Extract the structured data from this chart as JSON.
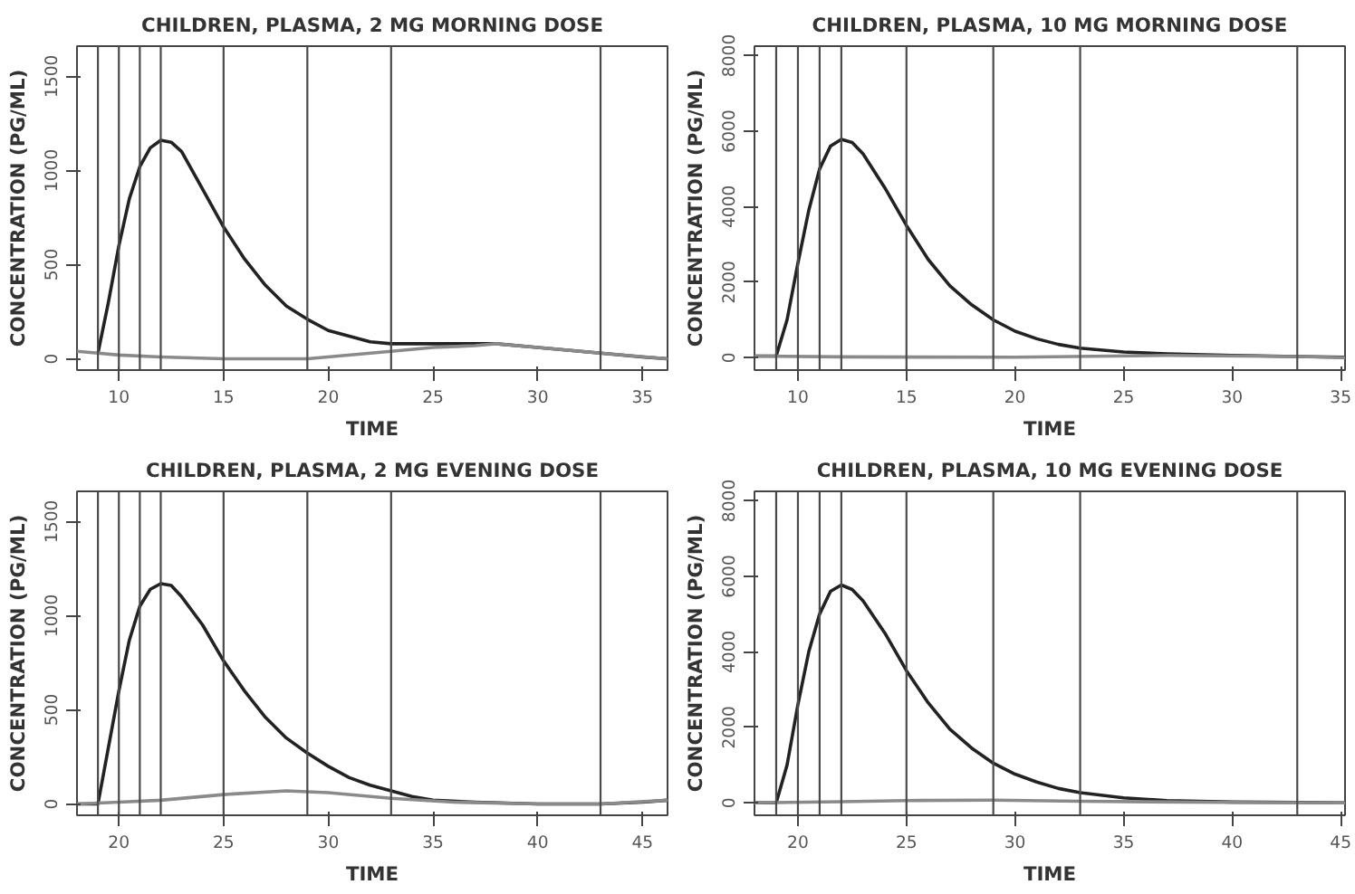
{
  "chart_data": [
    {
      "type": "line",
      "title": "CHILDREN, PLASMA, 2 MG MORNING DOSE",
      "xlabel": "TIME",
      "ylabel": "CONCENTRATION (PG/ML)",
      "xlim": [
        8,
        36.2
      ],
      "ylim": [
        -60,
        1660
      ],
      "xticks": [
        10,
        15,
        20,
        25,
        30,
        35
      ],
      "yticks": [
        0,
        500,
        1000,
        1500
      ],
      "grid": false,
      "marker": "none",
      "line_style": "solid",
      "series": [
        {
          "color": "#222222",
          "x": [
            9,
            9.5,
            10,
            10.5,
            11,
            11.5,
            12,
            12.5,
            13,
            14,
            15,
            16,
            17,
            18,
            19,
            20,
            21,
            22,
            23,
            25,
            27,
            28,
            30,
            33,
            35,
            36.2
          ],
          "values": [
            30,
            300,
            600,
            850,
            1020,
            1120,
            1160,
            1150,
            1100,
            900,
            700,
            530,
            390,
            280,
            210,
            150,
            120,
            90,
            80,
            80,
            80,
            80,
            60,
            30,
            10,
            0
          ]
        },
        {
          "color": "#8a8a8a",
          "x": [
            8,
            9,
            10,
            12,
            15,
            19,
            23,
            25,
            27,
            28,
            30,
            33,
            36.2
          ],
          "values": [
            40,
            30,
            20,
            10,
            0,
            0,
            40,
            60,
            70,
            80,
            60,
            30,
            0
          ]
        }
      ],
      "ref_lines": [
        {
          "axis": "x",
          "value": 9
        },
        {
          "axis": "x",
          "value": 10
        },
        {
          "axis": "x",
          "value": 11
        },
        {
          "axis": "x",
          "value": 12
        },
        {
          "axis": "x",
          "value": 15
        },
        {
          "axis": "x",
          "value": 19
        },
        {
          "axis": "x",
          "value": 23
        },
        {
          "axis": "x",
          "value": 33
        }
      ]
    },
    {
      "type": "line",
      "title": "CHILDREN, PLASMA, 10 MG MORNING DOSE",
      "xlabel": "TIME",
      "ylabel": "CONCENTRATION (PG/ML)",
      "xlim": [
        8,
        35.2
      ],
      "ylim": [
        -330,
        8250
      ],
      "xticks": [
        10,
        15,
        20,
        25,
        30,
        35
      ],
      "yticks": [
        0,
        2000,
        4000,
        6000,
        8000
      ],
      "grid": false,
      "marker": "none",
      "line_style": "solid",
      "series": [
        {
          "color": "#222222",
          "x": [
            8,
            9,
            9.5,
            10,
            10.5,
            11,
            11.5,
            12,
            12.5,
            13,
            14,
            15,
            16,
            17,
            18,
            19,
            20,
            21,
            22,
            23,
            25,
            27,
            30,
            33,
            35.2
          ],
          "values": [
            40,
            40,
            1000,
            2500,
            3900,
            5000,
            5600,
            5780,
            5700,
            5400,
            4500,
            3500,
            2600,
            1900,
            1400,
            1000,
            700,
            500,
            350,
            250,
            150,
            100,
            60,
            30,
            10
          ]
        },
        {
          "color": "#8a8a8a",
          "x": [
            8,
            12,
            20,
            27,
            33,
            35.2
          ],
          "values": [
            40,
            20,
            10,
            60,
            30,
            0
          ]
        }
      ],
      "ref_lines": [
        {
          "axis": "x",
          "value": 9
        },
        {
          "axis": "x",
          "value": 10
        },
        {
          "axis": "x",
          "value": 11
        },
        {
          "axis": "x",
          "value": 12
        },
        {
          "axis": "x",
          "value": 15
        },
        {
          "axis": "x",
          "value": 19
        },
        {
          "axis": "x",
          "value": 23
        },
        {
          "axis": "x",
          "value": 33
        }
      ]
    },
    {
      "type": "line",
      "title": "CHILDREN, PLASMA, 2 MG EVENING DOSE",
      "xlabel": "TIME",
      "ylabel": "CONCENTRATION (PG/ML)",
      "xlim": [
        18,
        46.2
      ],
      "ylim": [
        -60,
        1660
      ],
      "xticks": [
        20,
        25,
        30,
        35,
        40,
        45
      ],
      "yticks": [
        0,
        500,
        1000,
        1500
      ],
      "grid": false,
      "marker": "none",
      "line_style": "solid",
      "series": [
        {
          "color": "#222222",
          "x": [
            18,
            19,
            19.5,
            20,
            20.5,
            21,
            21.5,
            22,
            22.5,
            23,
            24,
            25,
            26,
            27,
            28,
            29,
            30,
            31,
            32,
            33,
            34,
            35,
            37,
            40,
            43,
            45,
            46.2
          ],
          "values": [
            0,
            0,
            300,
            600,
            870,
            1050,
            1140,
            1170,
            1160,
            1100,
            950,
            760,
            600,
            460,
            350,
            270,
            200,
            140,
            100,
            70,
            40,
            20,
            10,
            0,
            0,
            10,
            20
          ]
        },
        {
          "color": "#8a8a8a",
          "x": [
            18,
            20,
            22,
            25,
            28,
            30,
            33,
            36,
            40,
            43,
            46.2
          ],
          "values": [
            0,
            10,
            20,
            50,
            70,
            60,
            30,
            10,
            0,
            0,
            20
          ]
        }
      ],
      "ref_lines": [
        {
          "axis": "x",
          "value": 19
        },
        {
          "axis": "x",
          "value": 20
        },
        {
          "axis": "x",
          "value": 21
        },
        {
          "axis": "x",
          "value": 22
        },
        {
          "axis": "x",
          "value": 25
        },
        {
          "axis": "x",
          "value": 29
        },
        {
          "axis": "x",
          "value": 33
        },
        {
          "axis": "x",
          "value": 43
        }
      ]
    },
    {
      "type": "line",
      "title": "CHILDREN, PLASMA, 10 MG EVENING DOSE",
      "xlabel": "TIME",
      "ylabel": "CONCENTRATION (PG/ML)",
      "xlim": [
        18,
        45.2
      ],
      "ylim": [
        -330,
        8250
      ],
      "xticks": [
        20,
        25,
        30,
        35,
        40,
        45
      ],
      "yticks": [
        0,
        2000,
        4000,
        6000,
        8000
      ],
      "grid": false,
      "marker": "none",
      "line_style": "solid",
      "series": [
        {
          "color": "#222222",
          "x": [
            18,
            19,
            19.5,
            20,
            20.5,
            21,
            21.5,
            22,
            22.5,
            23,
            24,
            25,
            26,
            27,
            28,
            29,
            30,
            31,
            32,
            33,
            35,
            37,
            40,
            43,
            45.2
          ],
          "values": [
            0,
            0,
            1000,
            2600,
            4000,
            5000,
            5600,
            5770,
            5650,
            5350,
            4500,
            3500,
            2650,
            1950,
            1450,
            1050,
            760,
            550,
            380,
            270,
            130,
            60,
            20,
            10,
            0
          ]
        },
        {
          "color": "#8a8a8a",
          "x": [
            18,
            22,
            25,
            29,
            33,
            40,
            45.2
          ],
          "values": [
            0,
            30,
            60,
            70,
            40,
            10,
            0
          ]
        }
      ],
      "ref_lines": [
        {
          "axis": "x",
          "value": 19
        },
        {
          "axis": "x",
          "value": 20
        },
        {
          "axis": "x",
          "value": 21
        },
        {
          "axis": "x",
          "value": 22
        },
        {
          "axis": "x",
          "value": 25
        },
        {
          "axis": "x",
          "value": 29
        },
        {
          "axis": "x",
          "value": 33
        },
        {
          "axis": "x",
          "value": 43
        }
      ]
    }
  ]
}
